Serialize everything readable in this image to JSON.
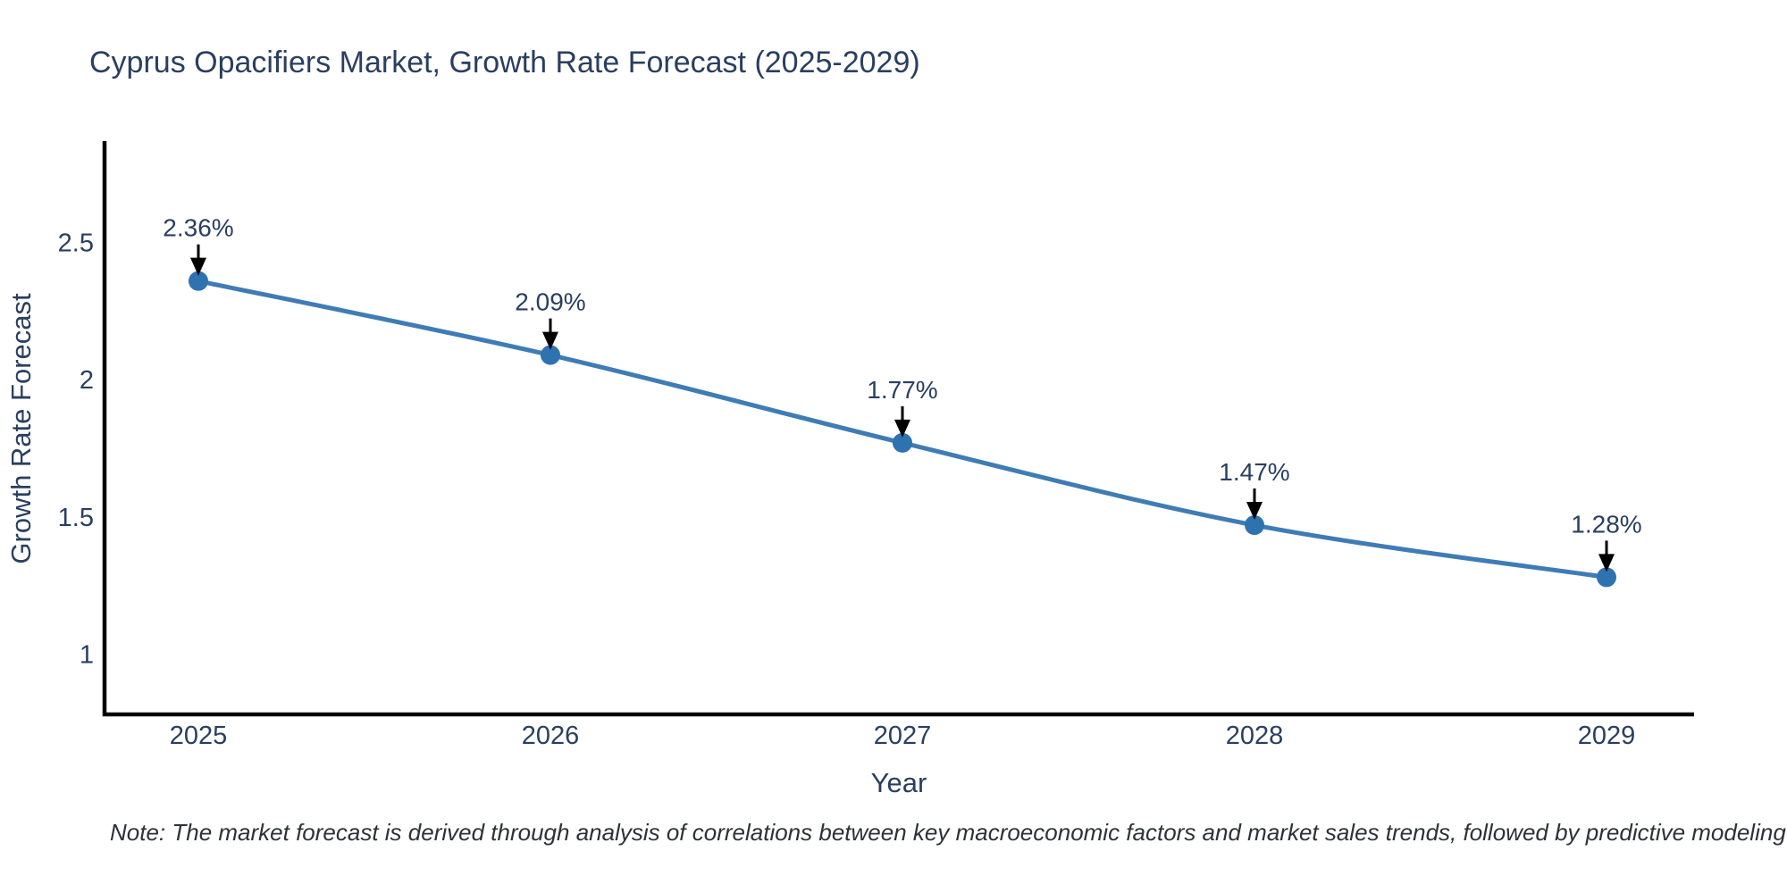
{
  "chart": {
    "note": "Note: The market forecast is derived through analysis of correlations between key macroeconomic factors and market sales trends, followed by predictive modeling to project future sales",
    "colors": {
      "background": "#ffffff",
      "title_text": "#2a3f5f",
      "tick_text": "#2a3f5f",
      "axis_spine": "#000000",
      "line": "#3f7cb5",
      "marker": "#2f72b0",
      "annotation_arrow": "#000000",
      "note_text": "#2f3138"
    }
  },
  "chart_data": {
    "type": "line",
    "title": "Cyprus Opacifiers Market, Growth Rate Forecast (2025-2029)",
    "xlabel": "Year",
    "ylabel": "Growth Rate Forecast",
    "categories": [
      "2025",
      "2026",
      "2027",
      "2028",
      "2029"
    ],
    "x": [
      2025,
      2026,
      2027,
      2028,
      2029
    ],
    "values": [
      2.36,
      2.09,
      1.77,
      1.47,
      1.28
    ],
    "point_labels": [
      "2.36%",
      "2.09%",
      "1.77%",
      "1.47%",
      "1.28%"
    ],
    "yticks": [
      1,
      1.5,
      2,
      2.5
    ],
    "ytick_labels": [
      "1",
      "1.5",
      "2",
      "2.5"
    ],
    "ylim": [
      0.78,
      2.87
    ],
    "line_shape": "spline",
    "grid": false,
    "legend_position": "none",
    "annotations_style": "value label with downward black arrow to each point"
  }
}
